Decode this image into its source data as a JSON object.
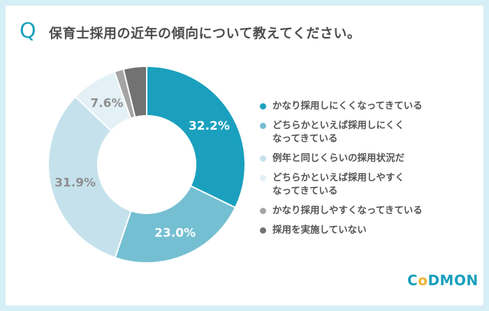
{
  "question": {
    "mark": "Q",
    "text": "保育士採用の近年の傾向について教えてください。"
  },
  "logo": {
    "prefix": "C",
    "accent": "o",
    "suffix": "DMON"
  },
  "colors": {
    "background": "#d6eef6",
    "accent": "#1aa0be"
  },
  "chart_data": {
    "type": "pie",
    "donut": true,
    "categories": [
      "かなり採用しにくくなってきている",
      "どちらかといえば採用しにくく\nなってきている",
      "例年と同じくらいの採用状況だ",
      "どちらかといえば採用しやすく\nなってきている",
      "かなり採用しやすくなってきている",
      "採用を実施していない"
    ],
    "values": [
      32.2,
      23.0,
      31.9,
      7.6,
      1.5,
      3.8
    ],
    "labels": [
      "32.2%",
      "23.0%",
      "31.9%",
      "7.6%",
      "",
      ""
    ],
    "colors": [
      "#1aa0be",
      "#75bfd2",
      "#c5e2ec",
      "#e3f1f6",
      "#a5a5a5",
      "#727272"
    ],
    "label_colors": [
      "#ffffff",
      "#ffffff",
      "#8e8e8e",
      "#8e8e8e",
      "",
      ""
    ],
    "legend_position": "right"
  }
}
